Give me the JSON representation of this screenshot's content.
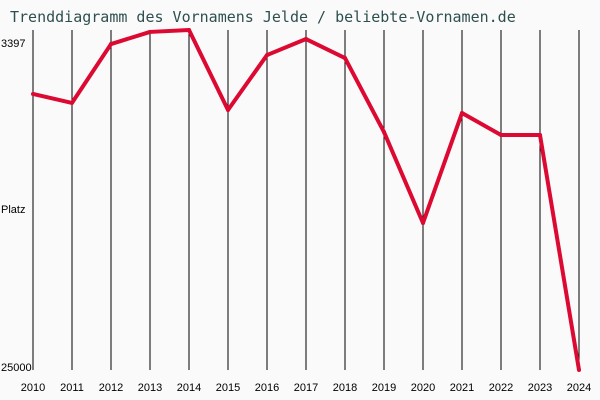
{
  "chart_data": {
    "type": "line",
    "title": "Trenddiagramm des Vornamens Jelde / beliebte-Vornamen.de",
    "ylabel": "Platz",
    "ylim": [
      3397,
      25000
    ],
    "y_inverted": true,
    "y_tick_labels": [
      "3397",
      "25000"
    ],
    "x": [
      2010,
      2011,
      2012,
      2013,
      2014,
      2015,
      2016,
      2017,
      2018,
      2019,
      2020,
      2021,
      2022,
      2023,
      2024
    ],
    "values": [
      7460,
      8030,
      4290,
      3520,
      3397,
      8480,
      4990,
      3970,
      5180,
      9880,
      15660,
      8670,
      10070,
      10070,
      25000
    ],
    "grid": "vertical",
    "line_color": "#dc0a32",
    "title_color": "#2f4f4f"
  }
}
